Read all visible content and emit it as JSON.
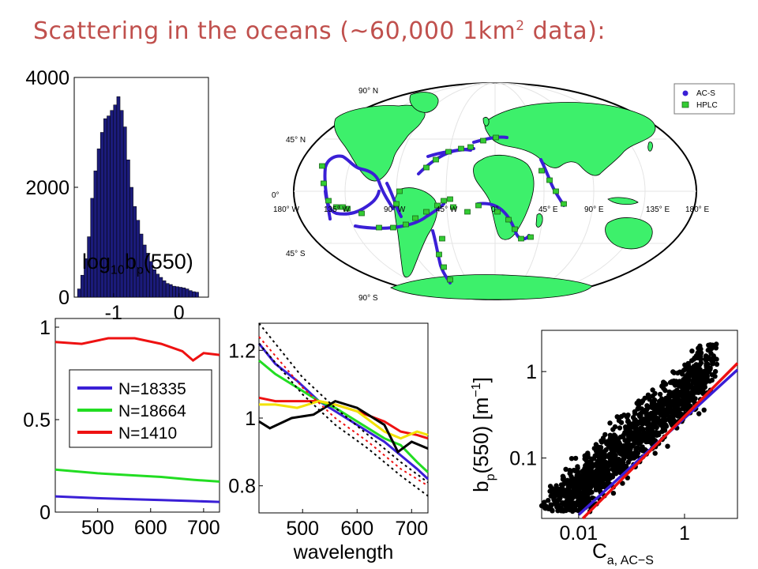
{
  "slide": {
    "title_pre": "Scattering in the oceans (~60,000 1km",
    "title_sup": "2",
    "title_post": " data):",
    "title_color": "#c0504d"
  },
  "chart_data": [
    {
      "id": "histogram",
      "type": "bar",
      "xlabel_pre": "log",
      "xlabel_sub": "10",
      "xlabel_mid": "b",
      "xlabel_sub2": "p",
      "xlabel_post": "(550)",
      "xlim": [
        -1.6,
        0.45
      ],
      "ylim": [
        0,
        4000
      ],
      "xticks": [
        "-1",
        "0"
      ],
      "xtick_values": [
        -1,
        0
      ],
      "yticks": [
        "0",
        "2000",
        "4000"
      ],
      "ytick_values": [
        0,
        2000,
        4000
      ],
      "bar_color": "#1b1b7a",
      "bin_start": -1.55,
      "bin_width": 0.05,
      "values": [
        150,
        400,
        700,
        1100,
        1800,
        2300,
        2700,
        3000,
        3250,
        3300,
        3400,
        3500,
        3650,
        3400,
        3100,
        2500,
        2000,
        1650,
        1400,
        1150,
        950,
        800,
        650,
        500,
        420,
        360,
        300,
        250,
        230,
        200,
        190,
        180,
        170,
        150,
        120,
        100,
        90
      ]
    },
    {
      "id": "map",
      "type": "scatter",
      "legend": [
        "AC-S",
        "HPLC"
      ],
      "legend_colors": [
        "#3a1fd6",
        "#33cc33"
      ],
      "lat_labels": [
        "90° N",
        "45° N",
        "0°",
        "45° S",
        "90° S"
      ],
      "lon_labels": [
        "180° W",
        "135° W",
        "90° W",
        "45° W",
        "0°",
        "45° E",
        "90° E",
        "135° E",
        "180° E"
      ]
    },
    {
      "id": "ratio",
      "type": "line",
      "xlim": [
        420,
        730
      ],
      "ylim": [
        0,
        1
      ],
      "xticks": [
        "500",
        "600",
        "700"
      ],
      "xtick_values": [
        500,
        600,
        700
      ],
      "yticks": [
        "0",
        "0.5",
        "1"
      ],
      "ytick_values": [
        0,
        0.5,
        1
      ],
      "series": [
        {
          "name": "N=18335",
          "color": "#3a1fd6",
          "x": [
            420,
            500,
            560,
            620,
            680,
            730
          ],
          "y": [
            0.085,
            0.075,
            0.07,
            0.065,
            0.06,
            0.055
          ]
        },
        {
          "name": "N=18664",
          "color": "#22dd22",
          "x": [
            420,
            500,
            560,
            620,
            680,
            730
          ],
          "y": [
            0.23,
            0.21,
            0.2,
            0.19,
            0.175,
            0.165
          ]
        },
        {
          "name": "N=1410",
          "color": "#ee1111",
          "x": [
            420,
            470,
            520,
            570,
            620,
            660,
            680,
            700,
            730
          ],
          "y": [
            0.92,
            0.91,
            0.94,
            0.94,
            0.91,
            0.87,
            0.82,
            0.86,
            0.85
          ]
        }
      ]
    },
    {
      "id": "spectra",
      "type": "line",
      "xlabel": "wavelength",
      "xlim": [
        420,
        730
      ],
      "ylim": [
        0.72,
        1.28
      ],
      "xticks": [
        "500",
        "600",
        "700"
      ],
      "xtick_values": [
        500,
        600,
        700
      ],
      "yticks": [
        "0.8",
        "1",
        "1.2"
      ],
      "ytick_values": [
        0.8,
        1.0,
        1.2
      ],
      "series": [
        {
          "color": "#3a1fd6",
          "x": [
            420,
            450,
            490,
            530,
            560,
            600,
            650,
            680,
            710,
            730
          ],
          "y": [
            1.22,
            1.16,
            1.11,
            1.05,
            1.02,
            0.98,
            0.93,
            0.89,
            0.85,
            0.82
          ]
        },
        {
          "color": "#22dd22",
          "x": [
            420,
            450,
            490,
            530,
            560,
            600,
            650,
            680,
            710,
            730
          ],
          "y": [
            1.17,
            1.13,
            1.09,
            1.05,
            1.03,
            0.99,
            0.94,
            0.92,
            0.87,
            0.84
          ]
        },
        {
          "color": "#ee1111",
          "x": [
            420,
            450,
            490,
            530,
            560,
            600,
            650,
            680,
            710,
            730
          ],
          "y": [
            1.06,
            1.05,
            1.05,
            1.05,
            1.04,
            1.02,
            0.99,
            0.96,
            0.95,
            0.94
          ]
        },
        {
          "color": "#f2e200",
          "x": [
            420,
            450,
            490,
            530,
            560,
            600,
            650,
            680,
            710,
            730
          ],
          "y": [
            1.04,
            1.04,
            1.03,
            1.05,
            1.04,
            1.02,
            0.96,
            0.94,
            0.96,
            0.95
          ]
        },
        {
          "color": "#000000",
          "x": [
            420,
            440,
            480,
            520,
            560,
            600,
            650,
            675,
            700,
            730
          ],
          "y": [
            0.99,
            0.97,
            1.0,
            1.01,
            1.05,
            1.03,
            0.98,
            0.9,
            0.93,
            0.91
          ]
        },
        {
          "color": "#000000",
          "dash": true,
          "x": [
            420,
            500,
            560,
            620,
            680,
            730
          ],
          "y": [
            1.28,
            1.12,
            1.03,
            0.95,
            0.87,
            0.81
          ]
        },
        {
          "color": "#ee1111",
          "dash": true,
          "x": [
            420,
            500,
            560,
            620,
            680,
            730
          ],
          "y": [
            1.24,
            1.09,
            1.0,
            0.93,
            0.85,
            0.8
          ]
        },
        {
          "color": "#000000",
          "dash": true,
          "x": [
            420,
            500,
            560,
            620,
            680,
            730
          ],
          "y": [
            1.22,
            1.07,
            0.98,
            0.91,
            0.83,
            0.77
          ]
        }
      ]
    },
    {
      "id": "scatter",
      "type": "scatter",
      "xlabel_main": "C",
      "xlabel_sub": "a, AC−S",
      "ylabel_main": "b",
      "ylabel_sub": "p",
      "ylabel_mid": "(550) [m",
      "ylabel_sup": "−1",
      "ylabel_post": "]",
      "xlog": true,
      "ylog": true,
      "xlim": [
        0.002,
        10
      ],
      "ylim": [
        0.02,
        3
      ],
      "xticks": [
        "0.01",
        "1"
      ],
      "xtick_values": [
        0.01,
        1
      ],
      "yticks": [
        "0.1",
        "1"
      ],
      "ytick_values": [
        0.1,
        1
      ],
      "point_color": "#000000",
      "fit_lines": [
        {
          "color": "#3a1fd6",
          "x": [
            0.01,
            10
          ],
          "y": [
            0.022,
            1.05
          ]
        },
        {
          "color": "#ee1111",
          "x": [
            0.012,
            10
          ],
          "y": [
            0.02,
            1.25
          ]
        }
      ]
    }
  ]
}
